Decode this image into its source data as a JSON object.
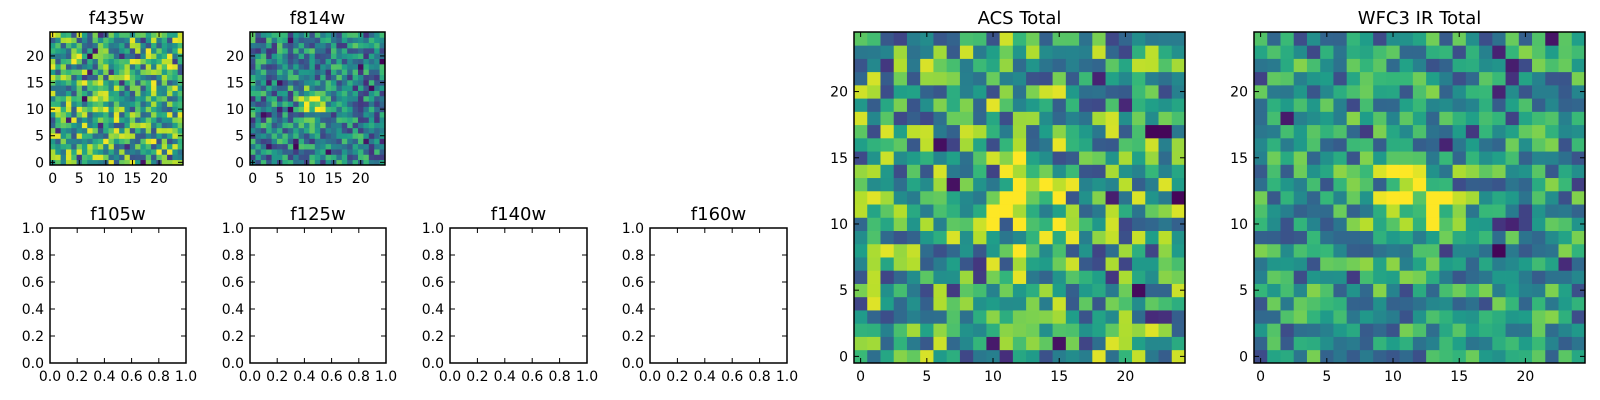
{
  "chart_data": [
    {
      "type": "heatmap",
      "title": "f435w",
      "x_ticks": [
        "0",
        "5",
        "10",
        "15",
        "20"
      ],
      "y_ticks": [
        "0",
        "5",
        "10",
        "15",
        "20"
      ],
      "xlim": [
        -0.5,
        24.5
      ],
      "ylim": [
        -0.5,
        24.5
      ],
      "grid_size": [
        25,
        25
      ],
      "colormap": "viridis",
      "signal": {
        "center": [
          12,
          12
        ],
        "peak": 0.0,
        "width": 2.0,
        "noise_base": 0.62,
        "noise_range": 0.38,
        "seed": 435
      }
    },
    {
      "type": "heatmap",
      "title": "f814w",
      "x_ticks": [
        "0",
        "5",
        "10",
        "15",
        "20"
      ],
      "y_ticks": [
        "0",
        "5",
        "10",
        "15",
        "20"
      ],
      "xlim": [
        -0.5,
        24.5
      ],
      "ylim": [
        -0.5,
        24.5
      ],
      "grid_size": [
        25,
        25
      ],
      "colormap": "viridis",
      "signal": {
        "center": [
          11.5,
          11.5
        ],
        "peak": 0.55,
        "width": 1.8,
        "noise_base": 0.45,
        "noise_range": 0.3,
        "seed": 814
      }
    },
    {
      "type": "empty",
      "title": "f105w",
      "x_ticks": [
        "0.0",
        "0.2",
        "0.4",
        "0.6",
        "0.8",
        "1.0"
      ],
      "y_ticks": [
        "0.0",
        "0.2",
        "0.4",
        "0.6",
        "0.8",
        "1.0"
      ],
      "xlim": [
        0,
        1
      ],
      "ylim": [
        0,
        1
      ]
    },
    {
      "type": "empty",
      "title": "f125w",
      "x_ticks": [
        "0.0",
        "0.2",
        "0.4",
        "0.6",
        "0.8",
        "1.0"
      ],
      "y_ticks": [
        "0.0",
        "0.2",
        "0.4",
        "0.6",
        "0.8",
        "1.0"
      ],
      "xlim": [
        0,
        1
      ],
      "ylim": [
        0,
        1
      ]
    },
    {
      "type": "empty",
      "title": "f140w",
      "x_ticks": [
        "0.0",
        "0.2",
        "0.4",
        "0.6",
        "0.8",
        "1.0"
      ],
      "y_ticks": [
        "0.0",
        "0.2",
        "0.4",
        "0.6",
        "0.8",
        "1.0"
      ],
      "xlim": [
        0,
        1
      ],
      "ylim": [
        0,
        1
      ]
    },
    {
      "type": "empty",
      "title": "f160w",
      "x_ticks": [
        "0.0",
        "0.2",
        "0.4",
        "0.6",
        "0.8",
        "1.0"
      ],
      "y_ticks": [
        "0.0",
        "0.2",
        "0.4",
        "0.6",
        "0.8",
        "1.0"
      ],
      "xlim": [
        0,
        1
      ],
      "ylim": [
        0,
        1
      ]
    },
    {
      "type": "heatmap",
      "title": "ACS Total",
      "x_ticks": [
        "0",
        "5",
        "10",
        "15",
        "20"
      ],
      "y_ticks": [
        "0",
        "5",
        "10",
        "15",
        "20"
      ],
      "xlim": [
        -0.5,
        24.5
      ],
      "ylim": [
        -0.5,
        24.5
      ],
      "grid_size": [
        25,
        25
      ],
      "colormap": "viridis",
      "signal": {
        "center": [
          12,
          11.5
        ],
        "peak": 0.4,
        "width": 2.0,
        "noise_base": 0.58,
        "noise_range": 0.38,
        "seed": 1001
      }
    },
    {
      "type": "heatmap",
      "title": "WFC3 IR Total",
      "x_ticks": [
        "0",
        "5",
        "10",
        "15",
        "20"
      ],
      "y_ticks": [
        "0",
        "5",
        "10",
        "15",
        "20"
      ],
      "xlim": [
        -0.5,
        24.5
      ],
      "ylim": [
        -0.5,
        24.5
      ],
      "grid_size": [
        25,
        25
      ],
      "colormap": "viridis",
      "signal": {
        "center": [
          11.5,
          11.5
        ],
        "peak": 0.5,
        "width": 2.2,
        "noise_base": 0.52,
        "noise_range": 0.3,
        "seed": 2002
      }
    }
  ]
}
